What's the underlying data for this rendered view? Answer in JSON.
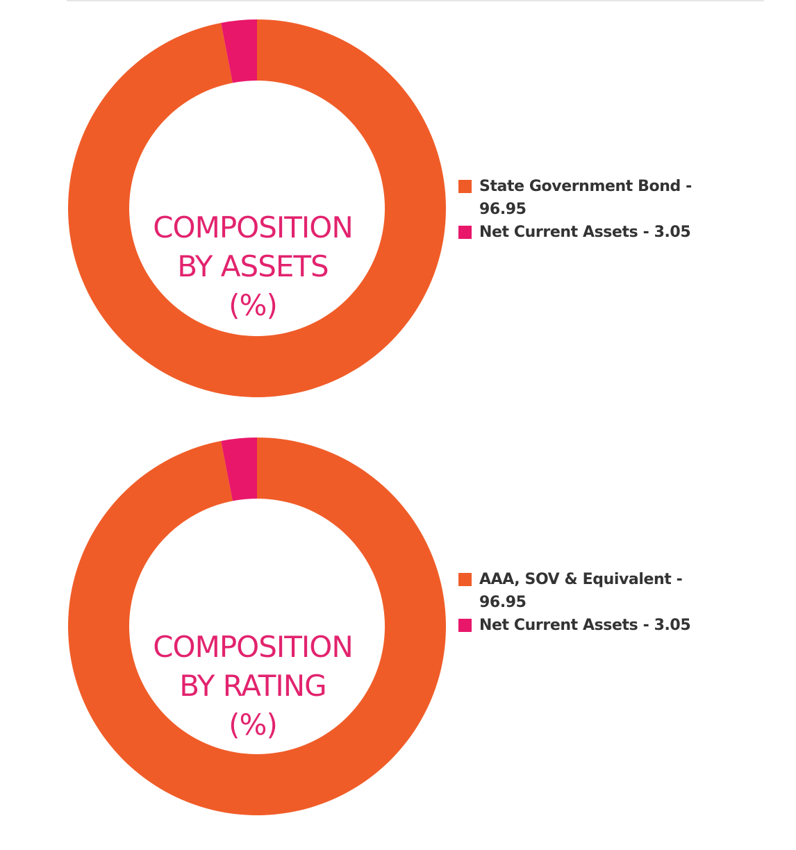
{
  "colors": {
    "orange": "#f05c28",
    "pink": "#e8176a",
    "title": "#e2236e",
    "legend_text": "#333333"
  },
  "chart_data": [
    {
      "type": "pie",
      "style": "donut",
      "title_lines": [
        "COMPOSITION",
        "BY ASSETS",
        "(%)"
      ],
      "legend_position": "right",
      "slices": [
        {
          "label": "State Government Bond - 96.95",
          "name": "State Government Bond",
          "value": 96.95,
          "color": "#f05c28"
        },
        {
          "label": "Net Current Assets - 3.05",
          "name": "Net Current Assets",
          "value": 3.05,
          "color": "#e8176a"
        }
      ]
    },
    {
      "type": "pie",
      "style": "donut",
      "title_lines": [
        "COMPOSITION",
        "BY RATING",
        "(%)"
      ],
      "legend_position": "right",
      "slices": [
        {
          "label": "AAA, SOV & Equivalent - 96.95",
          "name": "AAA, SOV & Equivalent",
          "value": 96.95,
          "color": "#f05c28"
        },
        {
          "label": "Net Current Assets - 3.05",
          "name": "Net Current Assets",
          "value": 3.05,
          "color": "#e8176a"
        }
      ]
    }
  ]
}
